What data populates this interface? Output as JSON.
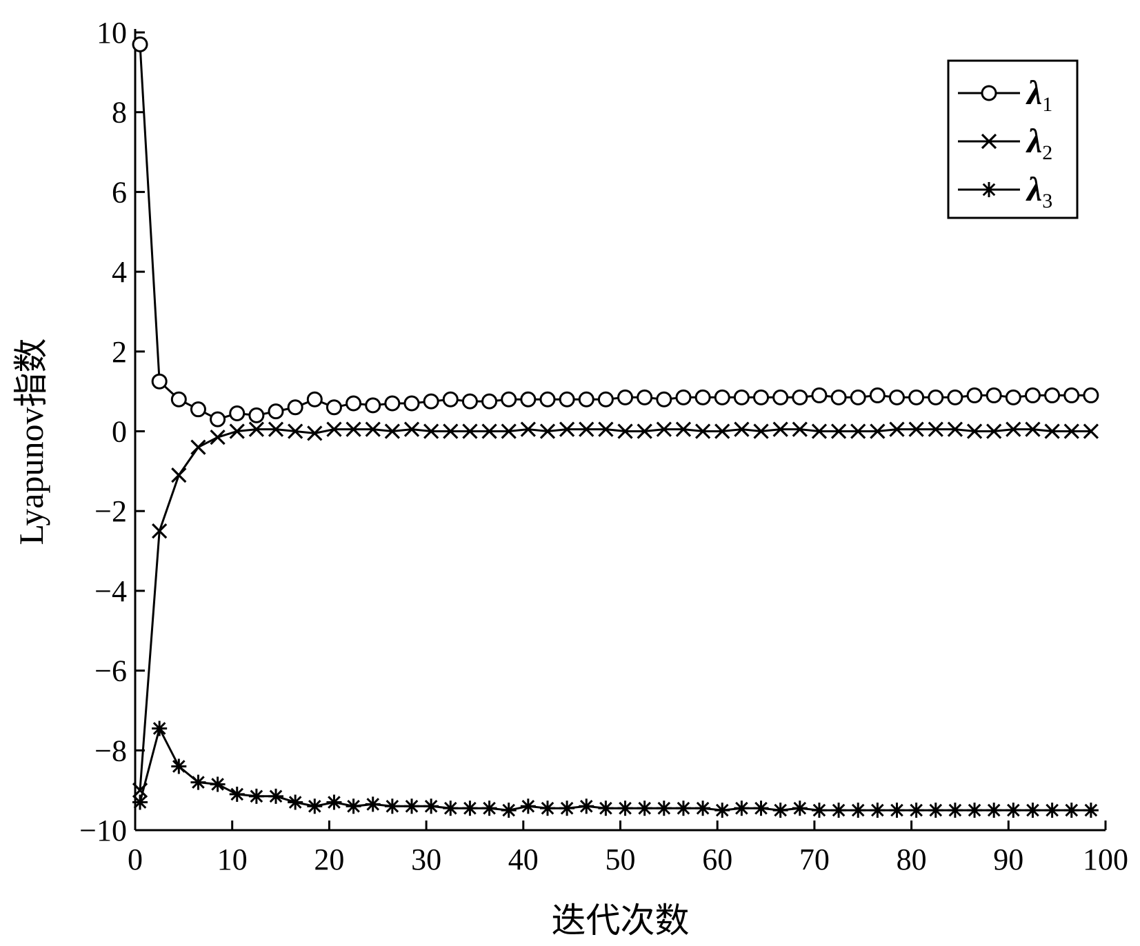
{
  "chart_data": {
    "type": "line",
    "title": "",
    "xlabel": "迭代次数",
    "ylabel": "Lyapunov指数",
    "xlim": [
      0,
      100
    ],
    "ylim": [
      -10,
      10
    ],
    "xticks": [
      0,
      10,
      20,
      30,
      40,
      50,
      60,
      70,
      80,
      90,
      100
    ],
    "yticks": [
      -10,
      -8,
      -6,
      -4,
      -2,
      0,
      2,
      4,
      6,
      8,
      10
    ],
    "grid": false,
    "legend_position": "top-right",
    "series": [
      {
        "name": "λ1",
        "marker": "circle",
        "x": [
          0.5,
          2.5,
          4.5,
          6.5,
          8.5,
          10.5,
          12.5,
          14.5,
          16.5,
          18.5,
          20.5,
          22.5,
          24.5,
          26.5,
          28.5,
          30.5,
          32.5,
          34.5,
          36.5,
          38.5,
          40.5,
          42.5,
          44.5,
          46.5,
          48.5,
          50.5,
          52.5,
          54.5,
          56.5,
          58.5,
          60.5,
          62.5,
          64.5,
          66.5,
          68.5,
          70.5,
          72.5,
          74.5,
          76.5,
          78.5,
          80.5,
          82.5,
          84.5,
          86.5,
          88.5,
          90.5,
          92.5,
          94.5,
          96.5,
          98.5
        ],
        "values": [
          9.7,
          1.25,
          0.8,
          0.55,
          0.3,
          0.45,
          0.4,
          0.5,
          0.6,
          0.8,
          0.6,
          0.7,
          0.65,
          0.7,
          0.7,
          0.75,
          0.8,
          0.75,
          0.75,
          0.8,
          0.8,
          0.8,
          0.8,
          0.8,
          0.8,
          0.85,
          0.85,
          0.8,
          0.85,
          0.85,
          0.85,
          0.85,
          0.85,
          0.85,
          0.85,
          0.9,
          0.85,
          0.85,
          0.9,
          0.85,
          0.85,
          0.85,
          0.85,
          0.9,
          0.9,
          0.85,
          0.9,
          0.9,
          0.9,
          0.9
        ]
      },
      {
        "name": "λ2",
        "marker": "x",
        "x": [
          0.5,
          2.5,
          4.5,
          6.5,
          8.5,
          10.5,
          12.5,
          14.5,
          16.5,
          18.5,
          20.5,
          22.5,
          24.5,
          26.5,
          28.5,
          30.5,
          32.5,
          34.5,
          36.5,
          38.5,
          40.5,
          42.5,
          44.5,
          46.5,
          48.5,
          50.5,
          52.5,
          54.5,
          56.5,
          58.5,
          60.5,
          62.5,
          64.5,
          66.5,
          68.5,
          70.5,
          72.5,
          74.5,
          76.5,
          78.5,
          80.5,
          82.5,
          84.5,
          86.5,
          88.5,
          90.5,
          92.5,
          94.5,
          96.5,
          98.5
        ],
        "values": [
          -9.0,
          -2.5,
          -1.1,
          -0.4,
          -0.15,
          0.0,
          0.05,
          0.05,
          0.0,
          -0.05,
          0.05,
          0.05,
          0.05,
          0.0,
          0.05,
          0.0,
          0.0,
          0.0,
          0.0,
          0.0,
          0.05,
          0.0,
          0.05,
          0.05,
          0.05,
          0.0,
          0.0,
          0.05,
          0.05,
          0.0,
          0.0,
          0.05,
          0.0,
          0.05,
          0.05,
          0.0,
          0.0,
          0.0,
          0.0,
          0.05,
          0.05,
          0.05,
          0.05,
          0.0,
          0.0,
          0.05,
          0.05,
          0.0,
          0.0,
          0.0
        ]
      },
      {
        "name": "λ3",
        "marker": "asterisk",
        "x": [
          0.5,
          2.5,
          4.5,
          6.5,
          8.5,
          10.5,
          12.5,
          14.5,
          16.5,
          18.5,
          20.5,
          22.5,
          24.5,
          26.5,
          28.5,
          30.5,
          32.5,
          34.5,
          36.5,
          38.5,
          40.5,
          42.5,
          44.5,
          46.5,
          48.5,
          50.5,
          52.5,
          54.5,
          56.5,
          58.5,
          60.5,
          62.5,
          64.5,
          66.5,
          68.5,
          70.5,
          72.5,
          74.5,
          76.5,
          78.5,
          80.5,
          82.5,
          84.5,
          86.5,
          88.5,
          90.5,
          92.5,
          94.5,
          96.5,
          98.5
        ],
        "values": [
          -9.3,
          -7.45,
          -8.4,
          -8.8,
          -8.85,
          -9.1,
          -9.15,
          -9.15,
          -9.3,
          -9.4,
          -9.3,
          -9.4,
          -9.35,
          -9.4,
          -9.4,
          -9.4,
          -9.45,
          -9.45,
          -9.45,
          -9.5,
          -9.4,
          -9.45,
          -9.45,
          -9.4,
          -9.45,
          -9.45,
          -9.45,
          -9.45,
          -9.45,
          -9.45,
          -9.5,
          -9.45,
          -9.45,
          -9.5,
          -9.45,
          -9.5,
          -9.5,
          -9.5,
          -9.5,
          -9.5,
          -9.5,
          -9.5,
          -9.5,
          -9.5,
          -9.5,
          -9.5,
          -9.5,
          -9.5,
          -9.5,
          -9.5
        ]
      }
    ]
  }
}
